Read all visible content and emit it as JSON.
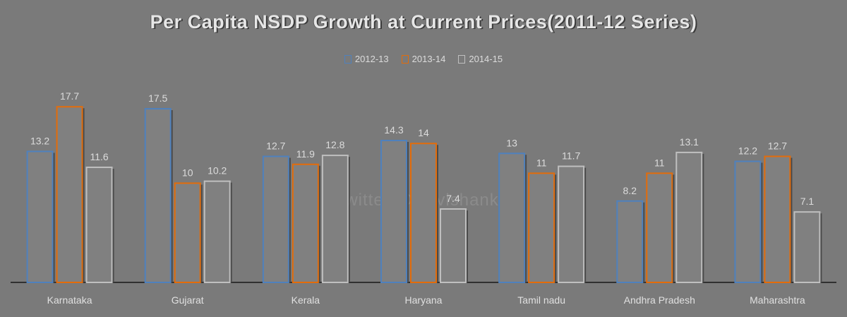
{
  "chart_data": {
    "type": "bar",
    "title": "Per Capita NSDP Growth at Current Prices(2011-12 Series)",
    "categories": [
      "Karnataka",
      "Gujarat",
      "Kerala",
      "Haryana",
      "Tamil nadu",
      "Andhra Pradesh",
      "Maharashtra"
    ],
    "series": [
      {
        "name": "2012-13",
        "color": "#4f81bd",
        "values": [
          13.2,
          17.5,
          12.7,
          14.3,
          13,
          8.2,
          12.2
        ],
        "labels": [
          "13.2",
          "17.5",
          "12.7",
          "14.3",
          "13",
          "8.2",
          "12.2"
        ]
      },
      {
        "name": "2013-14",
        "color": "#e36c0a",
        "values": [
          17.7,
          10,
          11.9,
          14,
          11,
          11,
          12.7
        ],
        "labels": [
          "17.7",
          "10",
          "11.9",
          "14",
          "11",
          "11",
          "12.7"
        ]
      },
      {
        "name": "2014-15",
        "color": "#bfbfbf",
        "values": [
          11.6,
          10.2,
          12.8,
          7.4,
          11.7,
          13.1,
          7.1
        ],
        "labels": [
          "11.6",
          "10.2",
          "12.8",
          "7.4",
          "11.7",
          "13.1",
          "7.1"
        ]
      }
    ],
    "ylim": [
      0,
      20
    ],
    "legend_position": "top",
    "grid": false
  },
  "watermark": "Twitter @Ravishankar"
}
